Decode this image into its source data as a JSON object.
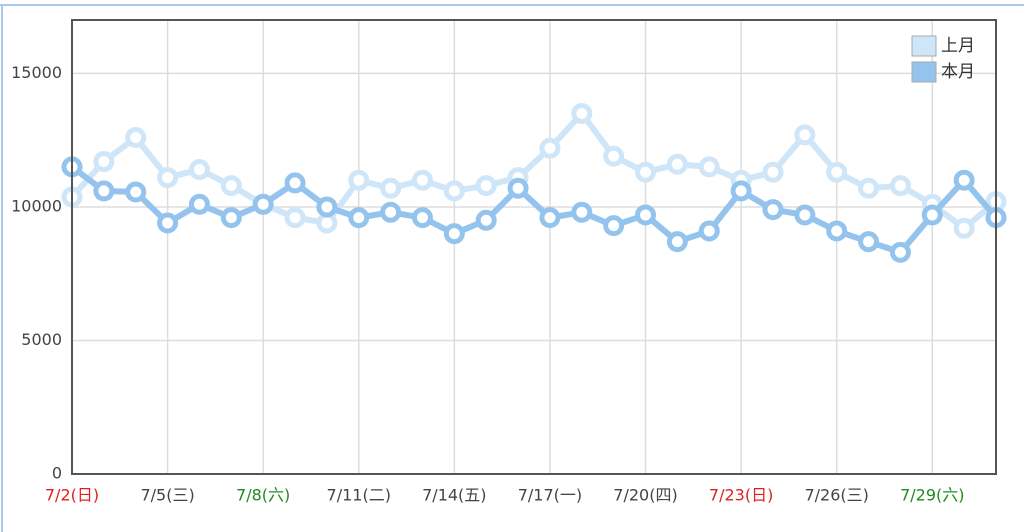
{
  "chart_data": {
    "type": "line",
    "categories": [
      "7/2(日)",
      null,
      null,
      "7/5(三)",
      null,
      null,
      "7/8(六)",
      null,
      null,
      "7/11(二)",
      null,
      null,
      "7/14(五)",
      null,
      null,
      "7/17(一)",
      null,
      null,
      "7/20(四)",
      null,
      null,
      "7/23(日)",
      null,
      null,
      "7/26(三)",
      null,
      null,
      "7/29(六)",
      null,
      null
    ],
    "category_colors": [
      "#e02020",
      null,
      null,
      "#444444",
      null,
      null,
      "#208a20",
      null,
      null,
      "#444444",
      null,
      null,
      "#444444",
      null,
      null,
      "#444444",
      null,
      null,
      "#444444",
      null,
      null,
      "#e02020",
      null,
      null,
      "#444444",
      null,
      null,
      "#208a20",
      null,
      null
    ],
    "series": [
      {
        "name": "上月",
        "color": "#cfe5f8",
        "values": [
          10370,
          11700,
          12600,
          11100,
          11400,
          10800,
          10100,
          9600,
          9400,
          11000,
          10700,
          11000,
          10600,
          10800,
          11100,
          12200,
          13500,
          11900,
          11300,
          11600,
          11500,
          11000,
          11300,
          12700,
          11300,
          10700,
          10800,
          10100,
          9200,
          10200
        ]
      },
      {
        "name": "本月",
        "color": "#94c4ee",
        "values": [
          11500,
          10600,
          10560,
          9400,
          10100,
          9600,
          10100,
          10900,
          10000,
          9600,
          9800,
          9600,
          9000,
          9500,
          10700,
          9600,
          9800,
          9300,
          9700,
          8700,
          9100,
          10600,
          9900,
          9700,
          9100,
          8700,
          8300,
          9700,
          11000,
          9600
        ]
      }
    ],
    "ylim": [
      0,
      17000
    ],
    "yticks": [
      0,
      5000,
      10000,
      15000
    ],
    "grid": true,
    "legend": "top-right"
  }
}
